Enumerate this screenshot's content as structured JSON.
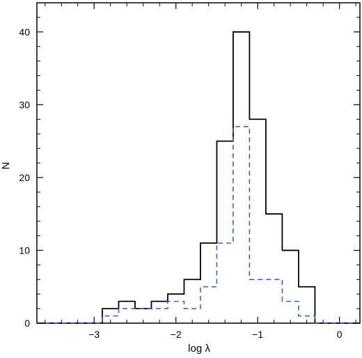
{
  "chart_data": {
    "type": "histogram",
    "xlabel": "log λ",
    "ylabel": "N",
    "xlim": [
      -3.7,
      0.25
    ],
    "ylim": [
      0,
      44
    ],
    "xticks": [
      -3,
      -2,
      -1,
      0
    ],
    "xtick_labels": [
      "−3",
      "−2",
      "−1",
      "0"
    ],
    "yticks": [
      0,
      10,
      20,
      30,
      40
    ],
    "ytick_labels": [
      "0",
      "10",
      "20",
      "30",
      "40"
    ],
    "grid": false,
    "legend": "none",
    "bin_edges": [
      -3.7,
      -2.9,
      -2.7,
      -2.5,
      -2.3,
      -2.1,
      -1.9,
      -1.7,
      -1.5,
      -1.3,
      -1.1,
      -0.9,
      -0.7,
      -0.5,
      -0.3,
      0.25
    ],
    "series": [
      {
        "style": "solid",
        "color": "#000000",
        "values": [
          0,
          2,
          3,
          2,
          3,
          4,
          6,
          11,
          25,
          40,
          28,
          15,
          10,
          5,
          0
        ]
      },
      {
        "style": "dashed",
        "color": "#3a5fd9",
        "values": [
          0,
          1,
          2,
          2,
          2,
          3,
          2,
          5,
          11,
          27,
          6,
          6,
          3,
          1,
          0
        ]
      }
    ]
  }
}
